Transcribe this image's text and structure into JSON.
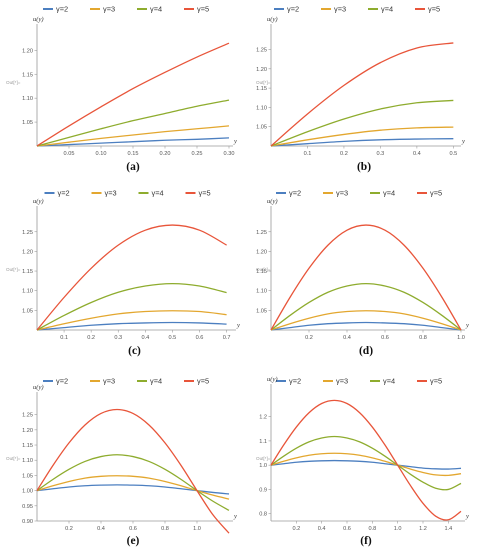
{
  "colors": [
    "#4C7FC0",
    "#E3A72F",
    "#8EAC2E",
    "#E8553A"
  ],
  "legend_labels": [
    "γ=2",
    "γ=3",
    "γ=4",
    "γ=5"
  ],
  "gamma": [
    2,
    3,
    4,
    5
  ],
  "annotation": "Out[*]=",
  "chart_data": [
    {
      "type": "line",
      "caption": "(a)",
      "xlabel": "y",
      "ylabel": "u(y)",
      "xlim": [
        0,
        0.3
      ],
      "ylim": [
        1.0,
        1.23
      ],
      "x_ticks": [
        "0.05",
        "0.10",
        "0.15",
        "0.20",
        "0.25",
        "0.30"
      ],
      "y_ticks": [
        "1.05",
        "1.10",
        "1.15",
        "1.20"
      ],
      "series": [
        {
          "name": "γ=2",
          "x": [
            0,
            0.05,
            0.1,
            0.15,
            0.2,
            0.25,
            0.3
          ],
          "y": [
            1.0,
            1.003,
            1.006,
            1.009,
            1.012,
            1.014,
            1.017
          ]
        },
        {
          "name": "γ=3",
          "x": [
            0,
            0.05,
            0.1,
            0.15,
            0.2,
            0.25,
            0.3
          ],
          "y": [
            1.0,
            1.008,
            1.016,
            1.023,
            1.03,
            1.036,
            1.042
          ]
        },
        {
          "name": "γ=4",
          "x": [
            0,
            0.05,
            0.1,
            0.15,
            0.2,
            0.25,
            0.3
          ],
          "y": [
            1.0,
            1.018,
            1.036,
            1.053,
            1.068,
            1.083,
            1.096
          ]
        },
        {
          "name": "γ=5",
          "x": [
            0,
            0.05,
            0.1,
            0.15,
            0.2,
            0.25,
            0.3
          ],
          "y": [
            1.0,
            1.042,
            1.082,
            1.12,
            1.154,
            1.186,
            1.215
          ]
        }
      ]
    },
    {
      "type": "line",
      "caption": "(b)",
      "xlabel": "y",
      "ylabel": "u(y)",
      "xlim": [
        0,
        0.51
      ],
      "ylim": [
        1.0,
        1.285
      ],
      "x_ticks": [
        "0.1",
        "0.2",
        "0.3",
        "0.4",
        "0.5"
      ],
      "y_ticks": [
        "1.05",
        "1.10",
        "1.15",
        "1.20",
        "1.25"
      ],
      "series": [
        {
          "name": "γ=2",
          "x": [
            0,
            0.1,
            0.2,
            0.3,
            0.4,
            0.5
          ],
          "y": [
            1.0,
            1.006,
            1.012,
            1.016,
            1.018,
            1.019
          ]
        },
        {
          "name": "γ=3",
          "x": [
            0,
            0.1,
            0.2,
            0.3,
            0.4,
            0.5
          ],
          "y": [
            1.0,
            1.016,
            1.03,
            1.041,
            1.047,
            1.049
          ]
        },
        {
          "name": "γ=4",
          "x": [
            0,
            0.1,
            0.2,
            0.3,
            0.4,
            0.5
          ],
          "y": [
            1.0,
            1.037,
            1.07,
            1.096,
            1.112,
            1.118
          ]
        },
        {
          "name": "γ=5",
          "x": [
            0,
            0.1,
            0.2,
            0.3,
            0.4,
            0.5
          ],
          "y": [
            1.0,
            1.083,
            1.157,
            1.216,
            1.254,
            1.267
          ]
        }
      ]
    },
    {
      "type": "line",
      "caption": "(c)",
      "xlabel": "y",
      "ylabel": "u(y)",
      "xlim": [
        0,
        0.72
      ],
      "ylim": [
        1.0,
        1.285
      ],
      "x_ticks": [
        "0.1",
        "0.2",
        "0.3",
        "0.4",
        "0.5",
        "0.6",
        "0.7"
      ],
      "y_ticks": [
        "1.05",
        "1.10",
        "1.15",
        "1.20",
        "1.25"
      ],
      "series": [
        {
          "name": "γ=2",
          "x": [
            0,
            0.1,
            0.2,
            0.3,
            0.4,
            0.5,
            0.6,
            0.7
          ],
          "y": [
            1.0,
            1.006,
            1.012,
            1.016,
            1.018,
            1.019,
            1.018,
            1.015
          ]
        },
        {
          "name": "γ=3",
          "x": [
            0,
            0.1,
            0.2,
            0.3,
            0.4,
            0.5,
            0.6,
            0.7
          ],
          "y": [
            1.0,
            1.016,
            1.03,
            1.041,
            1.047,
            1.049,
            1.047,
            1.039
          ]
        },
        {
          "name": "γ=4",
          "x": [
            0,
            0.1,
            0.2,
            0.3,
            0.4,
            0.5,
            0.6,
            0.7
          ],
          "y": [
            1.0,
            1.037,
            1.07,
            1.096,
            1.112,
            1.118,
            1.112,
            1.095
          ]
        },
        {
          "name": "γ=5",
          "x": [
            0,
            0.1,
            0.2,
            0.3,
            0.4,
            0.5,
            0.6,
            0.7
          ],
          "y": [
            1.0,
            1.083,
            1.157,
            1.216,
            1.254,
            1.267,
            1.254,
            1.216
          ]
        }
      ]
    },
    {
      "type": "line",
      "caption": "(d)",
      "xlabel": "y",
      "ylabel": "u(y)",
      "xlim": [
        0,
        1.0
      ],
      "ylim": [
        1.0,
        1.285
      ],
      "x_ticks": [
        "0.2",
        "0.4",
        "0.6",
        "0.8",
        "1.0"
      ],
      "y_ticks": [
        "1.05",
        "1.10",
        "1.15",
        "1.20",
        "1.25"
      ],
      "series": [
        {
          "name": "γ=2",
          "x": [
            0,
            0.1,
            0.2,
            0.3,
            0.4,
            0.5,
            0.6,
            0.7,
            0.8,
            0.9,
            1.0
          ],
          "y": [
            1.0,
            1.006,
            1.012,
            1.016,
            1.018,
            1.019,
            1.018,
            1.016,
            1.012,
            1.006,
            1.0
          ]
        },
        {
          "name": "γ=3",
          "x": [
            0,
            0.1,
            0.2,
            0.3,
            0.4,
            0.5,
            0.6,
            0.7,
            0.8,
            0.9,
            1.0
          ],
          "y": [
            1.0,
            1.016,
            1.03,
            1.041,
            1.047,
            1.049,
            1.047,
            1.041,
            1.03,
            1.016,
            1.0
          ]
        },
        {
          "name": "γ=4",
          "x": [
            0,
            0.1,
            0.2,
            0.3,
            0.4,
            0.5,
            0.6,
            0.7,
            0.8,
            0.9,
            1.0
          ],
          "y": [
            1.0,
            1.037,
            1.07,
            1.096,
            1.112,
            1.118,
            1.112,
            1.096,
            1.07,
            1.037,
            1.0
          ]
        },
        {
          "name": "γ=5",
          "x": [
            0,
            0.1,
            0.2,
            0.3,
            0.4,
            0.5,
            0.6,
            0.7,
            0.8,
            0.9,
            1.0
          ],
          "y": [
            1.0,
            1.083,
            1.157,
            1.216,
            1.254,
            1.267,
            1.254,
            1.216,
            1.157,
            1.083,
            1.0
          ]
        }
      ]
    },
    {
      "type": "line",
      "caption": "(e)",
      "xlabel": "y",
      "ylabel": "u(y)",
      "xlim": [
        0,
        1.2
      ],
      "ylim": [
        0.9,
        1.285
      ],
      "x_ticks": [
        "0.2",
        "0.4",
        "0.6",
        "0.8",
        "1.0"
      ],
      "y_ticks": [
        "0.90",
        "0.95",
        "1.00",
        "1.05",
        "1.10",
        "1.15",
        "1.20",
        "1.25"
      ],
      "series": [
        {
          "name": "γ=2",
          "x": [
            0,
            0.1,
            0.2,
            0.3,
            0.4,
            0.5,
            0.6,
            0.7,
            0.8,
            0.9,
            1.0,
            1.1,
            1.2
          ],
          "y": [
            1.0,
            1.006,
            1.012,
            1.016,
            1.018,
            1.019,
            1.018,
            1.016,
            1.012,
            1.006,
            1.0,
            0.994,
            0.989
          ]
        },
        {
          "name": "γ=3",
          "x": [
            0,
            0.1,
            0.2,
            0.3,
            0.4,
            0.5,
            0.6,
            0.7,
            0.8,
            0.9,
            1.0,
            1.1,
            1.2
          ],
          "y": [
            1.0,
            1.016,
            1.03,
            1.041,
            1.047,
            1.049,
            1.047,
            1.041,
            1.03,
            1.016,
            1.0,
            0.985,
            0.972
          ]
        },
        {
          "name": "γ=4",
          "x": [
            0,
            0.1,
            0.2,
            0.3,
            0.4,
            0.5,
            0.6,
            0.7,
            0.8,
            0.9,
            1.0,
            1.1,
            1.2
          ],
          "y": [
            1.0,
            1.037,
            1.07,
            1.096,
            1.112,
            1.118,
            1.112,
            1.096,
            1.07,
            1.037,
            1.0,
            0.965,
            0.935
          ]
        },
        {
          "name": "γ=5",
          "x": [
            0,
            0.1,
            0.2,
            0.3,
            0.4,
            0.5,
            0.6,
            0.7,
            0.8,
            0.9,
            1.0,
            1.1,
            1.2
          ],
          "y": [
            1.0,
            1.083,
            1.157,
            1.216,
            1.254,
            1.267,
            1.254,
            1.216,
            1.157,
            1.083,
            1.0,
            0.92,
            0.86
          ]
        }
      ]
    },
    {
      "type": "line",
      "caption": "(f)",
      "xlabel": "y",
      "ylabel": "u(y)",
      "xlim": [
        0,
        1.5
      ],
      "ylim": [
        0.77,
        1.285
      ],
      "x_ticks": [
        "0.2",
        "0.4",
        "0.6",
        "0.8",
        "1.0",
        "1.2",
        "1.4"
      ],
      "y_ticks": [
        "0.8",
        "0.9",
        "1.0",
        "1.1",
        "1.2"
      ],
      "series": [
        {
          "name": "γ=2",
          "x": [
            0,
            0.1,
            0.2,
            0.3,
            0.4,
            0.5,
            0.6,
            0.7,
            0.8,
            0.9,
            1.0,
            1.1,
            1.2,
            1.3,
            1.4,
            1.5
          ],
          "y": [
            1.0,
            1.006,
            1.012,
            1.016,
            1.018,
            1.019,
            1.018,
            1.016,
            1.012,
            1.006,
            1.0,
            0.994,
            0.988,
            0.985,
            0.984,
            0.987
          ]
        },
        {
          "name": "γ=3",
          "x": [
            0,
            0.1,
            0.2,
            0.3,
            0.4,
            0.5,
            0.6,
            0.7,
            0.8,
            0.9,
            1.0,
            1.1,
            1.2,
            1.3,
            1.4,
            1.5
          ],
          "y": [
            1.0,
            1.016,
            1.03,
            1.041,
            1.047,
            1.049,
            1.047,
            1.041,
            1.03,
            1.016,
            1.0,
            0.984,
            0.97,
            0.96,
            0.958,
            0.965
          ]
        },
        {
          "name": "γ=4",
          "x": [
            0,
            0.1,
            0.2,
            0.3,
            0.4,
            0.5,
            0.6,
            0.7,
            0.8,
            0.9,
            1.0,
            1.1,
            1.2,
            1.3,
            1.4,
            1.5
          ],
          "y": [
            1.0,
            1.037,
            1.07,
            1.096,
            1.112,
            1.118,
            1.112,
            1.096,
            1.07,
            1.037,
            1.0,
            0.963,
            0.93,
            0.905,
            0.9,
            0.925
          ]
        },
        {
          "name": "γ=5",
          "x": [
            0,
            0.1,
            0.2,
            0.3,
            0.4,
            0.5,
            0.6,
            0.7,
            0.8,
            0.9,
            1.0,
            1.1,
            1.2,
            1.3,
            1.4,
            1.5
          ],
          "y": [
            1.0,
            1.083,
            1.157,
            1.216,
            1.254,
            1.267,
            1.254,
            1.216,
            1.157,
            1.083,
            1.0,
            0.917,
            0.843,
            0.79,
            0.775,
            0.81
          ]
        }
      ]
    }
  ]
}
